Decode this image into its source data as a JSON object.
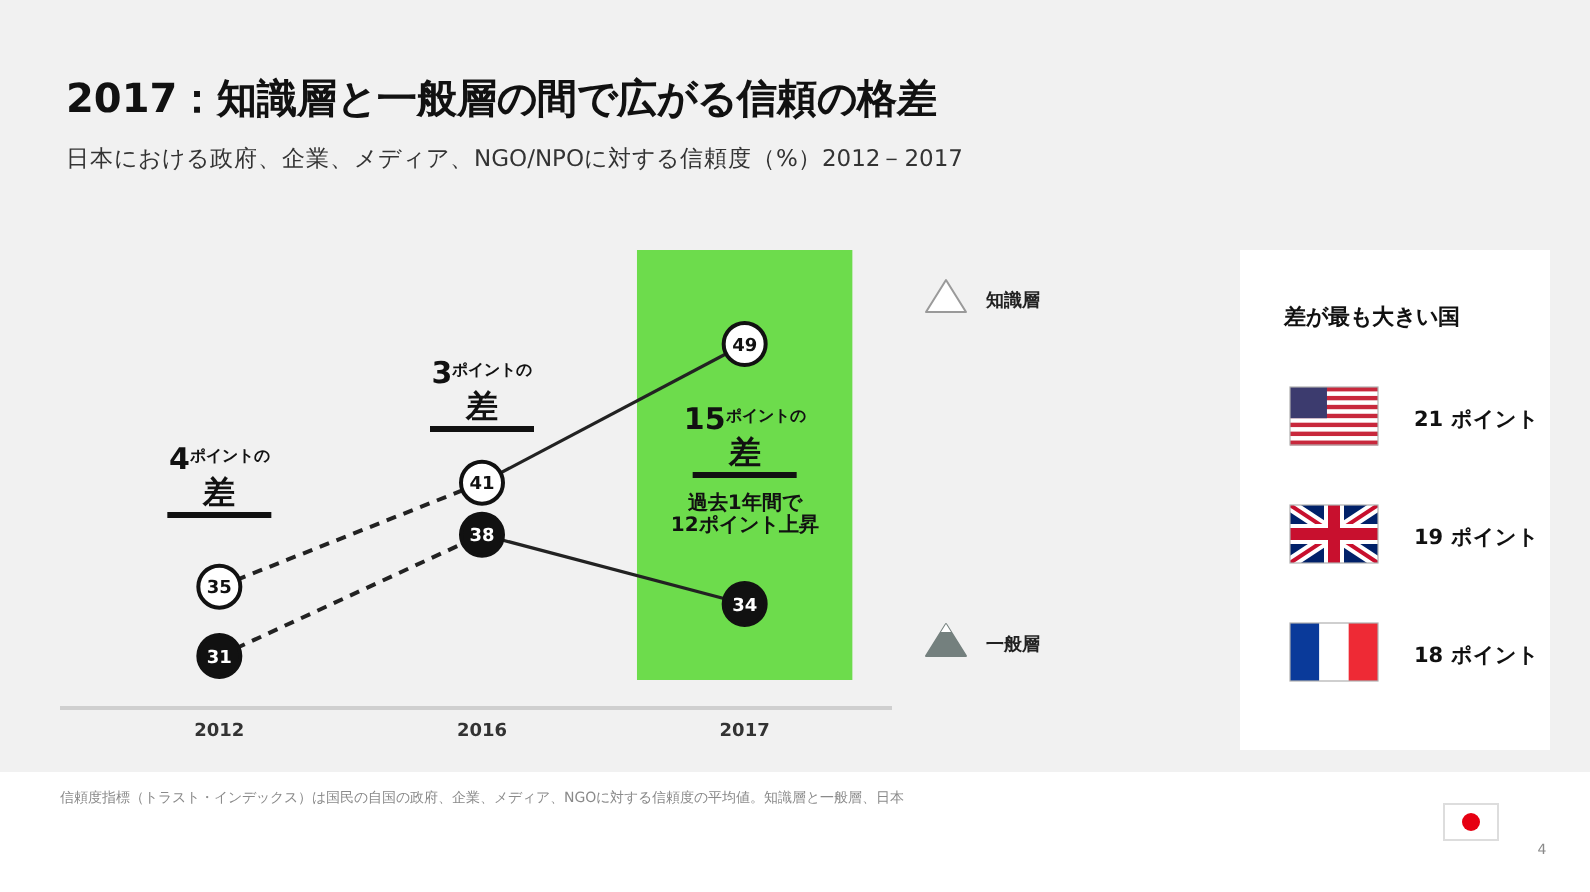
{
  "chart_data": [
    {
      "type": "line",
      "title": "2017：知識層と一般層の間で広がる信頼の格差",
      "subtitle": "日本における政府、企業、メディア、NGO/NPOに対する信頼度（%）2012－2017",
      "categories": [
        "2012",
        "2016",
        "2017"
      ],
      "series": [
        {
          "name": "知識層",
          "color": "#222222",
          "colors": [
            "#ffffff",
            "#ffffff",
            null
          ],
          "values": [
            35,
            41,
            null
          ],
          "value_labels": [
            "35",
            "41",
            null
          ],
          "line_style": "dashed"
        },
        {
          "color": "#222222",
          "colors": [
            null,
            "#ffffff",
            "#ffffff"
          ],
          "values": [
            null,
            41,
            49
          ],
          "value_labels": [
            null,
            null,
            "49"
          ],
          "line_style": "solid"
        },
        {
          "name": "一般層",
          "color": "#222222",
          "colors": [
            "#111111",
            "#111111",
            null
          ],
          "values": [
            31,
            38,
            null
          ],
          "value_labels": [
            "31",
            "38",
            null
          ],
          "line_style": "dashed"
        },
        {
          "color": "#222222",
          "colors": [
            null,
            "#111111",
            "#111111"
          ],
          "values": [
            null,
            38,
            34
          ],
          "value_labels": [
            null,
            null,
            "34"
          ],
          "line_style": "solid"
        }
      ],
      "marker": "circle",
      "legend": "right",
      "bands": [
        {
          "axis": "x",
          "from": "2017",
          "to": "2017",
          "color": "#6ddc4c"
        }
      ],
      "annotations": [
        "4$^{ポイントの}$差",
        "3$^{ポイントの}$差",
        "15$^{ポイントの}$差",
        "過去1年間で\n12ポイント上昇",
        "信頼度指標（トラスト・インデックス）は国民の自国の政府、企業、メディア、NGOに対する信頼度の平均値。知識層と一般層、日本",
        "4"
      ]
    },
    {
      "type": "other",
      "title": "差が最も大きい国",
      "annotations": [
        "21 ポイント",
        "19 ポイント",
        "18 ポイント"
      ]
    }
  ]
}
